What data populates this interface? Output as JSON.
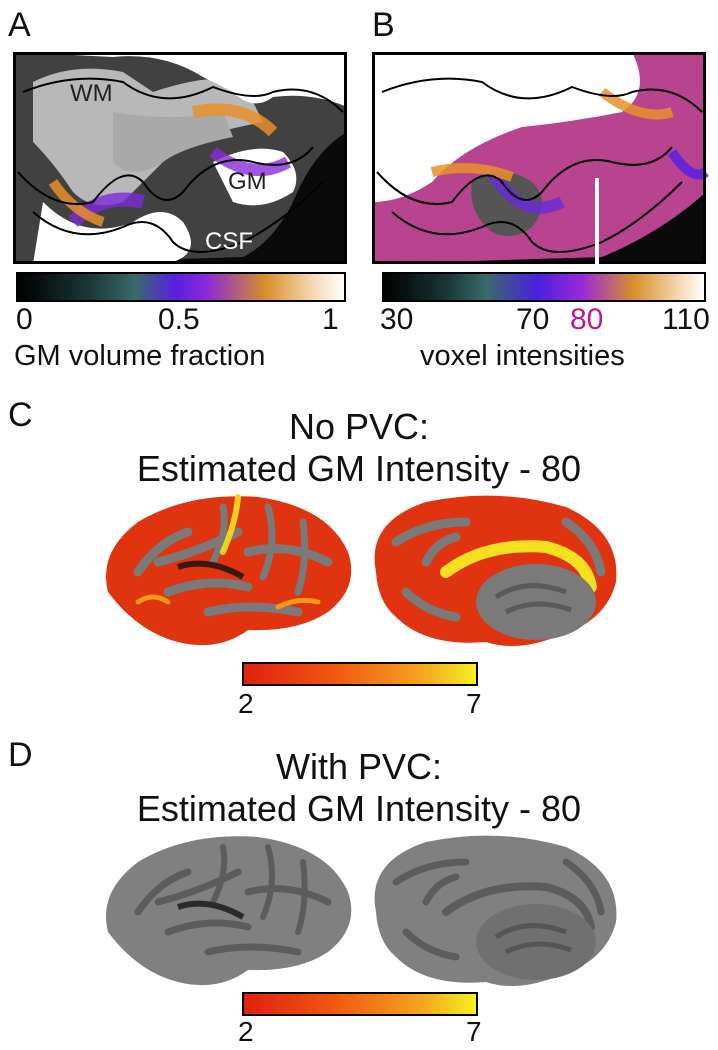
{
  "panels": {
    "A": {
      "letter": "A",
      "labels": {
        "wm": "WM",
        "gm": "GM",
        "csf": "CSF"
      },
      "colorbar": {
        "ticks": [
          "0",
          "0.5",
          "1"
        ],
        "label": "GM volume fraction"
      }
    },
    "B": {
      "letter": "B",
      "colorbar": {
        "ticks": [
          "30",
          "70",
          "80",
          "110"
        ],
        "highlight_tick": "80",
        "highlight_color": "#c0188a",
        "label": "voxel intensities"
      }
    },
    "C": {
      "letter": "C",
      "title_line1": "No PVC:",
      "title_line2": "Estimated GM Intensity - 80",
      "colorbar": {
        "min": "2",
        "max": "7"
      }
    },
    "D": {
      "letter": "D",
      "title_line1": "With PVC:",
      "title_line2": "Estimated GM Intensity - 80",
      "colorbar": {
        "min": "2",
        "max": "7"
      }
    }
  },
  "colors": {
    "cortex_gray": "#7a7a7a",
    "sulci_gray": "#555555",
    "heat_low": "#e02010",
    "heat_high": "#f5f020"
  }
}
